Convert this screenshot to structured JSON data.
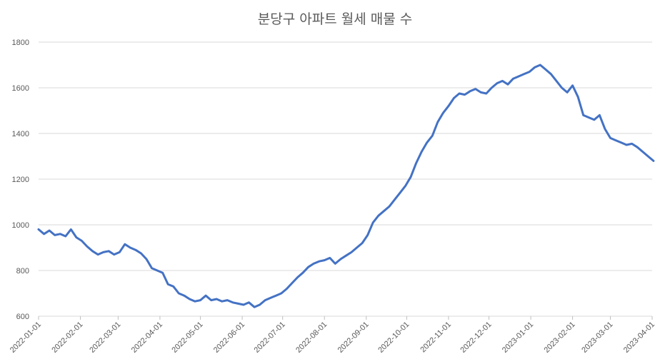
{
  "chart_data": {
    "type": "line",
    "title": "분당구 아파트 월세 매물 수",
    "xlabel": "",
    "ylabel": "",
    "ylim": [
      600,
      1800
    ],
    "yticks": [
      600,
      800,
      1000,
      1200,
      1400,
      1600,
      1800
    ],
    "xlim": [
      "2022-01-01",
      "2023-04-01"
    ],
    "xticks": [
      "2022-01-01",
      "2022-02-01",
      "2022-03-01",
      "2022-04-01",
      "2022-05-01",
      "2022-06-01",
      "2022-07-01",
      "2022-08-01",
      "2022-09-01",
      "2022-10-01",
      "2022-11-01",
      "2022-12-01",
      "2023-01-01",
      "2023-02-01",
      "2023-03-01",
      "2023-04-01"
    ],
    "grid": "horizontal",
    "legend": "none",
    "line_color": "#4472C4",
    "series": [
      {
        "x": [
          "2022-01-01",
          "2022-01-05",
          "2022-01-09",
          "2022-01-13",
          "2022-01-17",
          "2022-01-21",
          "2022-01-25",
          "2022-01-29",
          "2022-02-02",
          "2022-02-06",
          "2022-02-10",
          "2022-02-14",
          "2022-02-18",
          "2022-02-22",
          "2022-02-26",
          "2022-03-02",
          "2022-03-06",
          "2022-03-10",
          "2022-03-14",
          "2022-03-18",
          "2022-03-22",
          "2022-03-26",
          "2022-03-30",
          "2022-04-03",
          "2022-04-07",
          "2022-04-11",
          "2022-04-15",
          "2022-04-19",
          "2022-04-23",
          "2022-04-27",
          "2022-05-01",
          "2022-05-05",
          "2022-05-09",
          "2022-05-13",
          "2022-05-17",
          "2022-05-21",
          "2022-05-25",
          "2022-05-29",
          "2022-06-02",
          "2022-06-06",
          "2022-06-10",
          "2022-06-14",
          "2022-06-18",
          "2022-06-22",
          "2022-06-26",
          "2022-06-30",
          "2022-07-04",
          "2022-07-08",
          "2022-07-12",
          "2022-07-16",
          "2022-07-20",
          "2022-07-24",
          "2022-07-28",
          "2022-08-01",
          "2022-08-05",
          "2022-08-09",
          "2022-08-13",
          "2022-08-17",
          "2022-08-21",
          "2022-08-25",
          "2022-08-29",
          "2022-09-02",
          "2022-09-06",
          "2022-09-10",
          "2022-09-14",
          "2022-09-18",
          "2022-09-22",
          "2022-09-26",
          "2022-09-30",
          "2022-10-04",
          "2022-10-08",
          "2022-10-12",
          "2022-10-16",
          "2022-10-20",
          "2022-10-24",
          "2022-10-28",
          "2022-11-01",
          "2022-11-05",
          "2022-11-09",
          "2022-11-13",
          "2022-11-17",
          "2022-11-21",
          "2022-11-25",
          "2022-11-29",
          "2022-12-03",
          "2022-12-07",
          "2022-12-11",
          "2022-12-15",
          "2022-12-19",
          "2022-12-23",
          "2022-12-27",
          "2022-12-31",
          "2023-01-04",
          "2023-01-08",
          "2023-01-12",
          "2023-01-16",
          "2023-01-20",
          "2023-01-24",
          "2023-01-28",
          "2023-02-01",
          "2023-02-05",
          "2023-02-09",
          "2023-02-13",
          "2023-02-17",
          "2023-02-21",
          "2023-02-25",
          "2023-03-01",
          "2023-03-05",
          "2023-03-09",
          "2023-03-13",
          "2023-03-17",
          "2023-03-21",
          "2023-03-25",
          "2023-03-29",
          "2023-04-02"
        ],
        "values": [
          980,
          960,
          975,
          955,
          960,
          950,
          980,
          945,
          930,
          905,
          885,
          870,
          880,
          885,
          870,
          880,
          915,
          900,
          890,
          875,
          850,
          810,
          800,
          790,
          740,
          730,
          700,
          690,
          675,
          665,
          670,
          690,
          670,
          675,
          665,
          670,
          660,
          655,
          650,
          660,
          640,
          650,
          670,
          680,
          690,
          700,
          720,
          745,
          770,
          790,
          815,
          830,
          840,
          845,
          855,
          830,
          850,
          865,
          880,
          900,
          920,
          955,
          1010,
          1040,
          1060,
          1080,
          1110,
          1140,
          1170,
          1210,
          1270,
          1320,
          1360,
          1390,
          1450,
          1490,
          1520,
          1555,
          1575,
          1570,
          1585,
          1595,
          1580,
          1575,
          1600,
          1620,
          1630,
          1615,
          1640,
          1650,
          1660,
          1670,
          1690,
          1700,
          1680,
          1660,
          1630,
          1600,
          1580,
          1610,
          1560,
          1480,
          1470,
          1460,
          1480,
          1420,
          1380,
          1370,
          1360,
          1350,
          1355,
          1340,
          1320,
          1300,
          1280
        ]
      }
    ]
  }
}
